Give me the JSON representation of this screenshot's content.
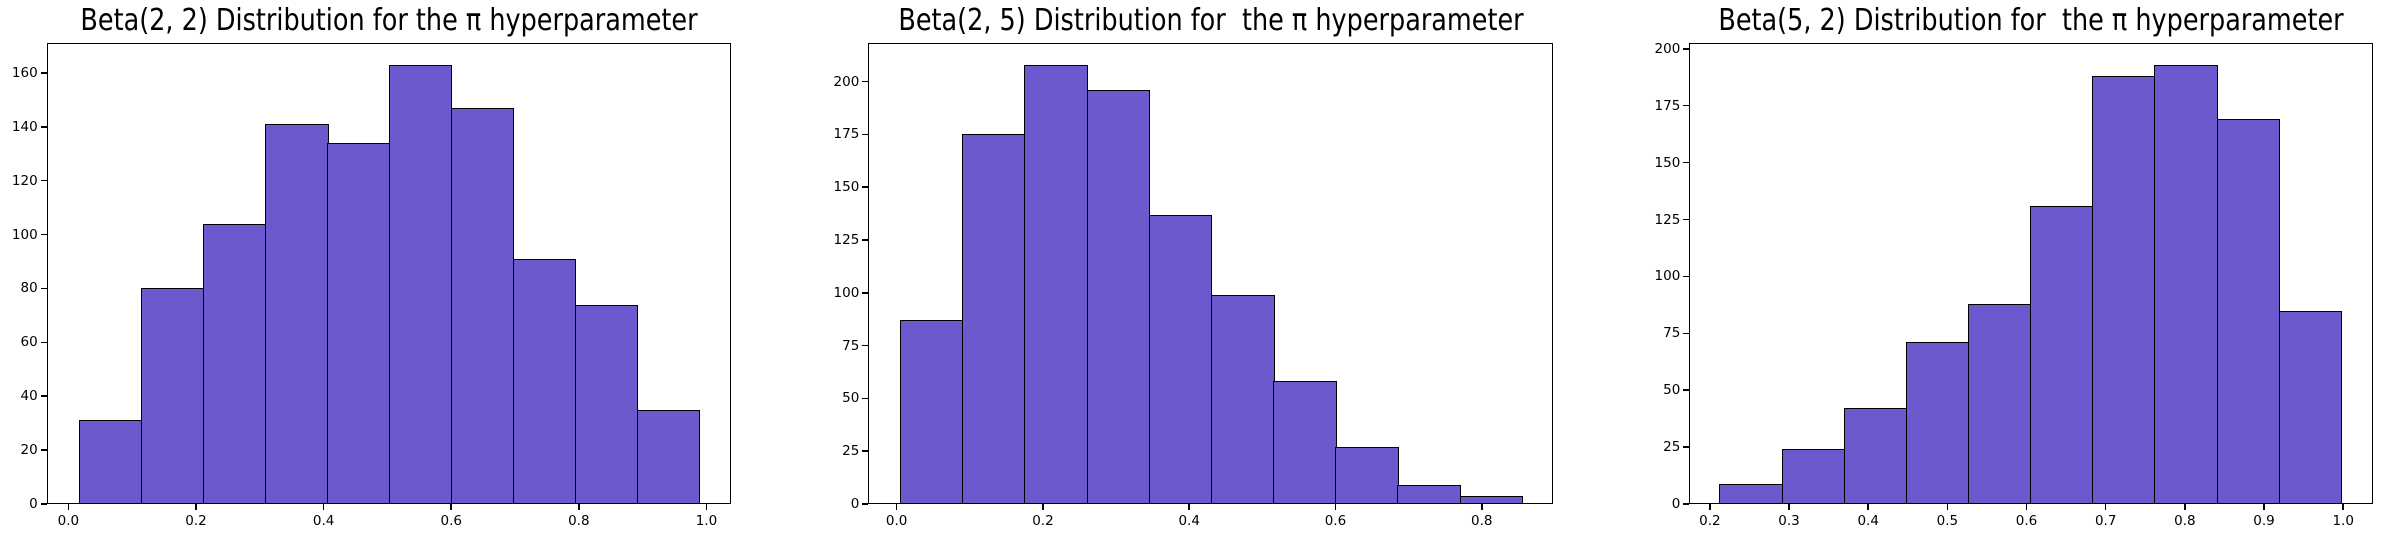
{
  "figure": {
    "background_color": "#ffffff",
    "bar_fill_color": "#6a5acd",
    "bar_edge_color": "#000000",
    "text_color": "#000000"
  },
  "chart_data": [
    {
      "type": "bar",
      "subtype": "histogram",
      "title": "Beta(2, 2) Distribution for the π hyperparameter",
      "xlabel": "",
      "ylabel": "",
      "grid": false,
      "legend": null,
      "bin_start": 0.017,
      "bin_end": 0.988,
      "n_bins": 10,
      "values": [
        31,
        80,
        104,
        141,
        134,
        163,
        147,
        91,
        74,
        35
      ],
      "x_tick_labels": [
        "0.0",
        "0.2",
        "0.4",
        "0.6",
        "0.8",
        "1.0"
      ],
      "y_tick_labels": [
        "0",
        "20",
        "40",
        "60",
        "80",
        "100",
        "120",
        "140",
        "160"
      ],
      "xlim": [
        -0.034,
        1.038
      ],
      "ylim": [
        0,
        171.2
      ]
    },
    {
      "type": "bar",
      "subtype": "histogram",
      "title": "Beta(2, 5) Distribution for  the π hyperparameter",
      "xlabel": "",
      "ylabel": "",
      "grid": false,
      "legend": null,
      "bin_start": 0.0045,
      "bin_end": 0.8547,
      "n_bins": 10,
      "values": [
        87,
        175,
        208,
        196,
        137,
        99,
        58,
        27,
        9,
        4
      ],
      "x_tick_labels": [
        "0.0",
        "0.2",
        "0.4",
        "0.6",
        "0.8"
      ],
      "y_tick_labels": [
        "0",
        "25",
        "50",
        "75",
        "100",
        "125",
        "150",
        "175",
        "200"
      ],
      "xlim": [
        -0.0388,
        0.897
      ],
      "ylim": [
        0,
        218.4
      ]
    },
    {
      "type": "bar",
      "subtype": "histogram",
      "title": "Beta(5, 2) Distribution for  the π hyperparameter",
      "xlabel": "",
      "ylabel": "",
      "grid": false,
      "legend": null,
      "bin_start": 0.212,
      "bin_end": 0.997,
      "n_bins": 10,
      "values": [
        9,
        24,
        42,
        71,
        88,
        131,
        188,
        193,
        169,
        85
      ],
      "x_tick_labels": [
        "0.2",
        "0.3",
        "0.4",
        "0.5",
        "0.6",
        "0.7",
        "0.8",
        "0.9",
        "1.0"
      ],
      "y_tick_labels": [
        "0",
        "25",
        "50",
        "75",
        "100",
        "125",
        "150",
        "175",
        "200"
      ],
      "xlim": [
        0.174,
        1.038
      ],
      "ylim": [
        0,
        202.7
      ]
    }
  ]
}
